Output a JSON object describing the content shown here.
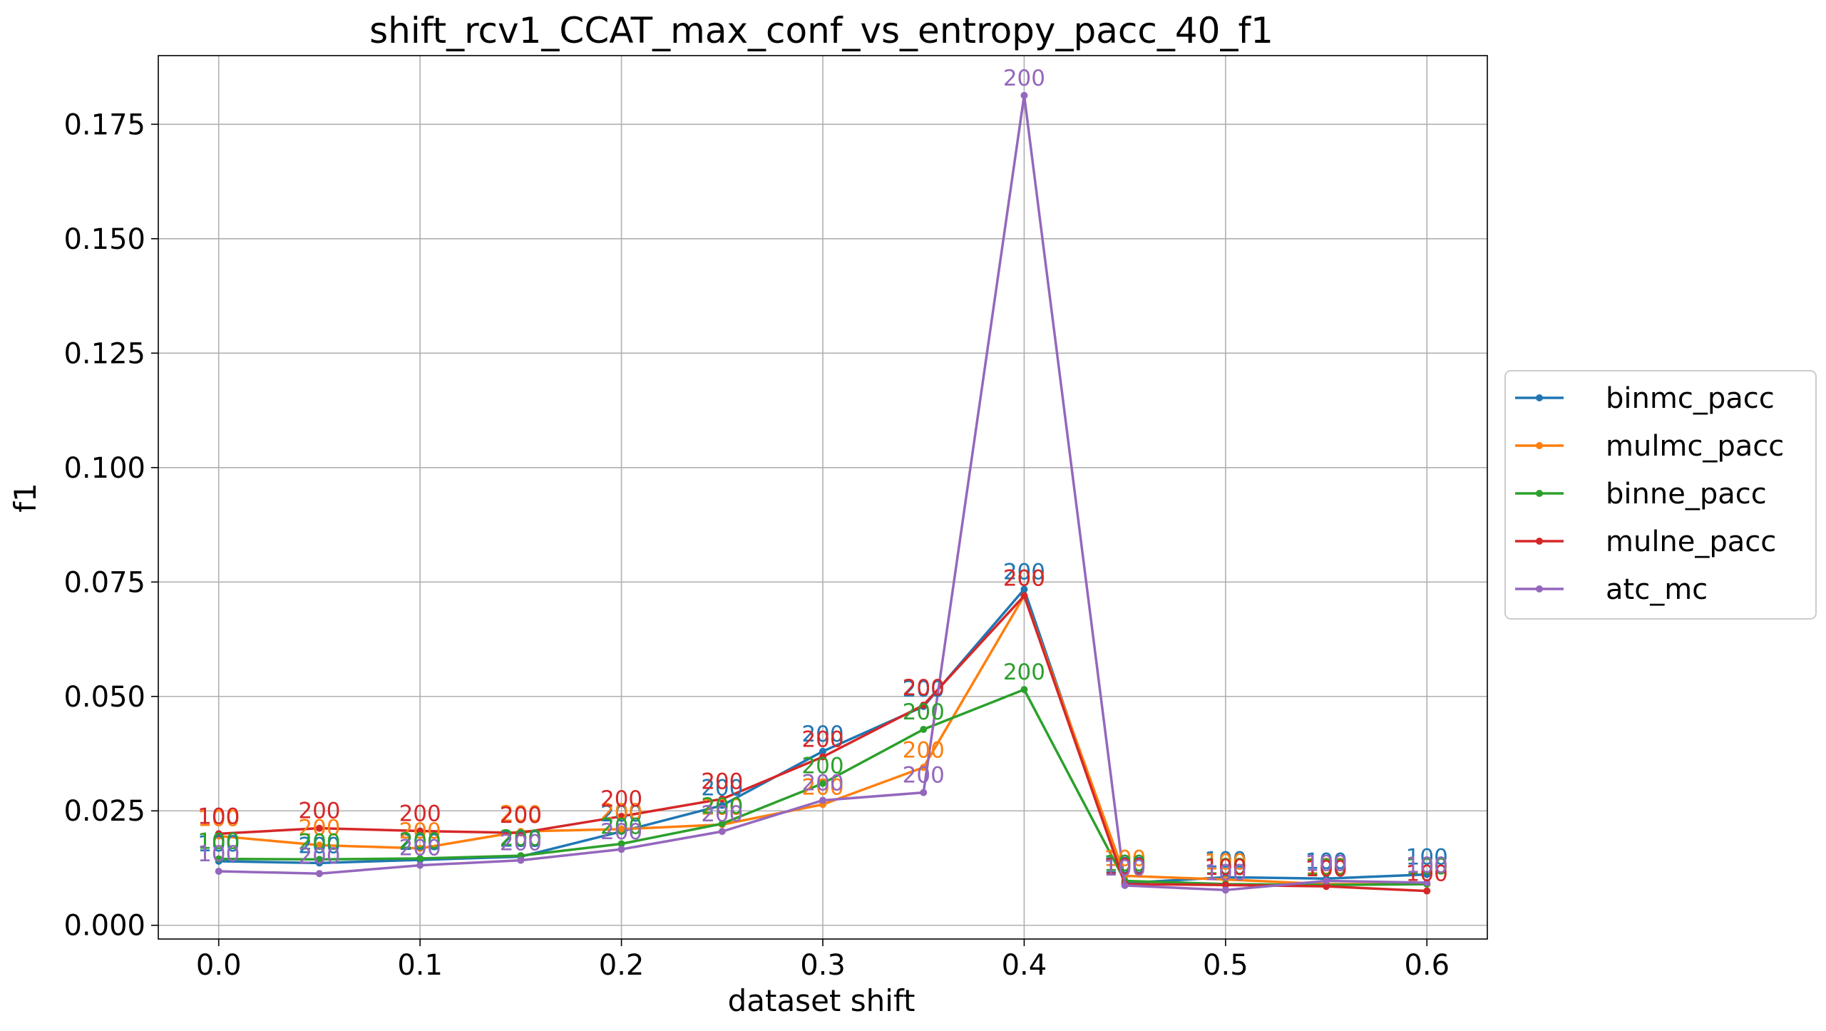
{
  "chart_data": {
    "type": "line",
    "title": "shift_rcv1_CCAT_max_conf_vs_entropy_pacc_40_f1",
    "xlabel": "dataset shift",
    "ylabel": "f1",
    "xlim": [
      -0.03,
      0.63
    ],
    "ylim": [
      -0.003,
      0.19
    ],
    "xticks": [
      0.0,
      0.1,
      0.2,
      0.3,
      0.4,
      0.5,
      0.6
    ],
    "xtick_labels": [
      "0.0",
      "0.1",
      "0.2",
      "0.3",
      "0.4",
      "0.5",
      "0.6"
    ],
    "yticks": [
      0.0,
      0.025,
      0.05,
      0.075,
      0.1,
      0.125,
      0.15,
      0.175
    ],
    "ytick_labels": [
      "0.000",
      "0.025",
      "0.050",
      "0.075",
      "0.100",
      "0.125",
      "0.150",
      "0.175"
    ],
    "grid": true,
    "legend_position": "right, outside",
    "x": [
      0.0,
      0.05,
      0.1,
      0.15,
      0.2,
      0.25,
      0.3,
      0.35,
      0.4,
      0.45,
      0.5,
      0.55,
      0.6
    ],
    "series": [
      {
        "name": "binmc_pacc",
        "color": "#1f77b4",
        "values": [
          0.014,
          0.0136,
          0.0143,
          0.015,
          0.0205,
          0.0262,
          0.038,
          0.0478,
          0.0734,
          0.0092,
          0.0105,
          0.0102,
          0.0111
        ],
        "labels": [
          "100",
          "200",
          "200",
          "200",
          "200",
          "200",
          "200",
          "200",
          "200",
          "100",
          "100",
          "100",
          "100"
        ]
      },
      {
        "name": "mulmc_pacc",
        "color": "#ff7f0e",
        "values": [
          0.0195,
          0.0175,
          0.0168,
          0.0205,
          0.021,
          0.022,
          0.0264,
          0.0345,
          0.072,
          0.0108,
          0.01,
          0.009,
          0.009
        ],
        "labels": [
          "100",
          "200",
          "200",
          "200",
          "200",
          "200",
          "200",
          "200",
          "200",
          "100",
          "100",
          "100",
          "100"
        ]
      },
      {
        "name": "binne_pacc",
        "color": "#2ca02c",
        "values": [
          0.0145,
          0.0144,
          0.0146,
          0.0152,
          0.0178,
          0.0222,
          0.031,
          0.0428,
          0.0515,
          0.0097,
          0.009,
          0.0088,
          0.009
        ],
        "labels": [
          "100",
          "200",
          "200",
          "200",
          "200",
          "200",
          "200",
          "200",
          "200",
          "100",
          "100",
          "100",
          "100"
        ]
      },
      {
        "name": "mulne_pacc",
        "color": "#d62728",
        "values": [
          0.02,
          0.0212,
          0.0206,
          0.0202,
          0.0238,
          0.0276,
          0.0368,
          0.0481,
          0.072,
          0.009,
          0.0088,
          0.0085,
          0.0075
        ],
        "labels": [
          "100",
          "200",
          "200",
          "200",
          "200",
          "200",
          "200",
          "200",
          "200",
          "100",
          "100",
          "100",
          "100"
        ]
      },
      {
        "name": "atc_mc",
        "color": "#9467bd",
        "values": [
          0.0118,
          0.0113,
          0.0131,
          0.0142,
          0.0166,
          0.0205,
          0.0273,
          0.029,
          0.1813,
          0.0087,
          0.0077,
          0.0097,
          0.0093
        ],
        "labels": [
          "100",
          "200",
          "200",
          "200",
          "200",
          "200",
          "200",
          "200",
          "200",
          "100",
          "100",
          "100",
          "100"
        ]
      }
    ]
  }
}
